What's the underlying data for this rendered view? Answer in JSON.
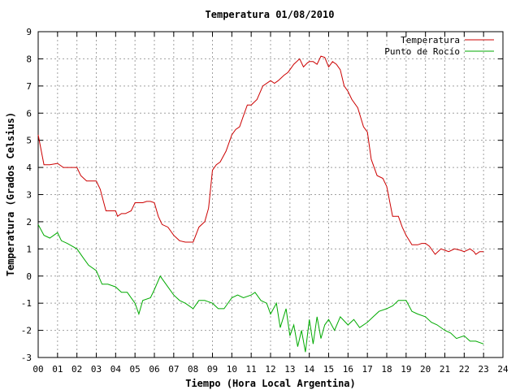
{
  "chart_data": {
    "type": "line",
    "title": "Temperatura 01/08/2010",
    "xlabel": "Tiempo (Hora Local Argentina)",
    "ylabel": "Temperatura (Grados Celsius)",
    "xlim": [
      0,
      24
    ],
    "ylim": [
      -3,
      9
    ],
    "x_tick_labels": [
      "00",
      "01",
      "02",
      "03",
      "04",
      "05",
      "06",
      "07",
      "08",
      "09",
      "10",
      "11",
      "12",
      "13",
      "14",
      "15",
      "16",
      "17",
      "18",
      "19",
      "20",
      "21",
      "22",
      "23",
      "24"
    ],
    "y_ticks": [
      -3,
      -2,
      -1,
      0,
      1,
      2,
      3,
      4,
      5,
      6,
      7,
      8,
      9
    ],
    "grid": true,
    "legend_position": "top-right",
    "series": [
      {
        "name": "Temperatura",
        "color": "#cc0000",
        "x": [
          0,
          0.3,
          0.6,
          1.0,
          1.3,
          2.0,
          2.2,
          2.5,
          3.0,
          3.2,
          3.5,
          4.0,
          4.1,
          4.3,
          4.5,
          4.8,
          5.0,
          5.2,
          5.4,
          5.6,
          5.8,
          6.0,
          6.2,
          6.4,
          6.7,
          7.0,
          7.3,
          7.6,
          8.0,
          8.3,
          8.6,
          8.8,
          9.0,
          9.2,
          9.4,
          9.7,
          10.0,
          10.2,
          10.4,
          10.6,
          10.8,
          11.0,
          11.3,
          11.6,
          12.0,
          12.2,
          12.4,
          12.7,
          12.9,
          13.0,
          13.2,
          13.5,
          13.7,
          13.9,
          14.0,
          14.2,
          14.4,
          14.6,
          14.8,
          15.0,
          15.2,
          15.4,
          15.6,
          15.8,
          16.0,
          16.2,
          16.5,
          16.8,
          17.0,
          17.2,
          17.5,
          17.8,
          18.0,
          18.3,
          18.6,
          18.8,
          19.0,
          19.3,
          19.6,
          19.8,
          20.0,
          20.2,
          20.5,
          20.8,
          21.0,
          21.2,
          21.5,
          21.8,
          22.0,
          22.3,
          22.5,
          22.6,
          22.8,
          23.0
        ],
        "values": [
          5.2,
          4.1,
          4.1,
          4.15,
          4.0,
          4.0,
          3.7,
          3.5,
          3.5,
          3.2,
          2.4,
          2.4,
          2.2,
          2.3,
          2.3,
          2.4,
          2.7,
          2.7,
          2.7,
          2.75,
          2.75,
          2.7,
          2.2,
          1.9,
          1.8,
          1.5,
          1.3,
          1.25,
          1.25,
          1.8,
          2.0,
          2.5,
          3.9,
          4.1,
          4.2,
          4.6,
          5.2,
          5.4,
          5.5,
          5.9,
          6.3,
          6.3,
          6.5,
          7.0,
          7.2,
          7.1,
          7.2,
          7.4,
          7.5,
          7.6,
          7.8,
          8.0,
          7.7,
          7.85,
          7.9,
          7.9,
          7.8,
          8.1,
          8.05,
          7.7,
          7.9,
          7.8,
          7.6,
          7.0,
          6.8,
          6.5,
          6.2,
          5.5,
          5.3,
          4.3,
          3.7,
          3.6,
          3.3,
          2.2,
          2.2,
          1.8,
          1.5,
          1.15,
          1.15,
          1.2,
          1.2,
          1.1,
          0.8,
          1.0,
          0.95,
          0.9,
          1.0,
          0.95,
          0.9,
          1.0,
          0.9,
          0.8,
          0.9,
          0.9
        ],
        "values_note": ""
      },
      {
        "name": "Punto de Rocío",
        "color": "#00aa00",
        "x": [
          0,
          0.3,
          0.6,
          1.0,
          1.2,
          1.5,
          2.0,
          2.3,
          2.6,
          3.0,
          3.3,
          3.6,
          4.0,
          4.3,
          4.6,
          5.0,
          5.2,
          5.4,
          5.8,
          6.0,
          6.3,
          6.6,
          7.0,
          7.3,
          7.6,
          8.0,
          8.3,
          8.6,
          9.0,
          9.3,
          9.6,
          10.0,
          10.3,
          10.6,
          11.0,
          11.2,
          11.5,
          11.8,
          12.0,
          12.3,
          12.5,
          12.8,
          13.0,
          13.2,
          13.4,
          13.6,
          13.8,
          14.0,
          14.2,
          14.4,
          14.6,
          14.8,
          15.0,
          15.3,
          15.6,
          16.0,
          16.3,
          16.6,
          17.0,
          17.3,
          17.6,
          18.0,
          18.3,
          18.6,
          19.0,
          19.3,
          19.6,
          20.0,
          20.3,
          20.6,
          21.0,
          21.3,
          21.6,
          22.0,
          22.3,
          22.6,
          23.0
        ],
        "values": [
          1.9,
          1.5,
          1.4,
          1.6,
          1.3,
          1.2,
          1.0,
          0.7,
          0.4,
          0.2,
          -0.3,
          -0.3,
          -0.4,
          -0.6,
          -0.6,
          -1.0,
          -1.4,
          -0.9,
          -0.8,
          -0.5,
          0.0,
          -0.3,
          -0.7,
          -0.9,
          -1.0,
          -1.2,
          -0.9,
          -0.9,
          -1.0,
          -1.2,
          -1.2,
          -0.8,
          -0.7,
          -0.8,
          -0.7,
          -0.6,
          -0.9,
          -1.0,
          -1.4,
          -1.0,
          -1.9,
          -1.2,
          -2.2,
          -1.8,
          -2.6,
          -2.0,
          -2.8,
          -1.6,
          -2.5,
          -1.5,
          -2.3,
          -1.8,
          -1.6,
          -2.0,
          -1.5,
          -1.8,
          -1.6,
          -1.9,
          -1.7,
          -1.5,
          -1.3,
          -1.2,
          -1.1,
          -0.9,
          -0.9,
          -1.3,
          -1.4,
          -1.5,
          -1.7,
          -1.8,
          -2.0,
          -2.1,
          -2.3,
          -2.2,
          -2.4,
          -2.4,
          -2.5
        ]
      }
    ]
  }
}
